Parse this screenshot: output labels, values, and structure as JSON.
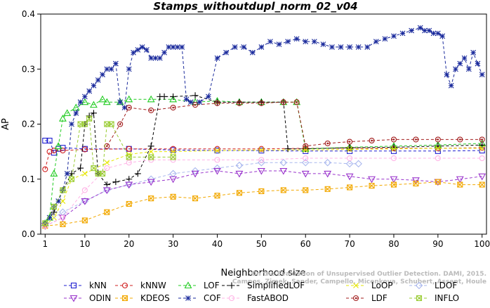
{
  "chart_data": {
    "type": "line",
    "title": "Stamps_withoutdupl_norm_02_v04",
    "xlabel": "Neighborhood size",
    "ylabel": "AP",
    "xlim": [
      0,
      101
    ],
    "ylim": [
      0,
      0.4
    ],
    "xticks": [
      1,
      10,
      20,
      30,
      40,
      50,
      60,
      70,
      80,
      90,
      100
    ],
    "yticks": [
      0.0,
      0.1,
      0.2,
      0.3,
      0.4
    ],
    "grid": false,
    "legend_position": "bottom",
    "watermark": "Campos, Zimek, Sander, Campello, Micenkova, Schubert, Assent, Houle: On the Evaluation of Unsupervised Outlier Detection. DAMI, 2015.",
    "series": [
      {
        "name": "kNN",
        "color": "#1f1fd0",
        "marker": "square",
        "x": [
          1,
          2,
          3,
          4,
          5,
          10,
          20,
          30,
          40,
          50,
          60,
          70,
          80,
          90,
          100
        ],
        "y": [
          0.17,
          0.17,
          0.148,
          0.155,
          0.157,
          0.155,
          0.155,
          0.153,
          0.152,
          0.152,
          0.151,
          0.151,
          0.151,
          0.151,
          0.152
        ]
      },
      {
        "name": "kNNW",
        "color": "#d01f1f",
        "marker": "circle",
        "x": [
          1,
          2,
          3,
          5,
          10,
          20,
          30,
          40,
          50,
          60,
          70,
          80,
          90,
          100
        ],
        "y": [
          0.118,
          0.15,
          0.152,
          0.152,
          0.154,
          0.155,
          0.155,
          0.155,
          0.155,
          0.156,
          0.156,
          0.156,
          0.156,
          0.157
        ]
      },
      {
        "name": "LOF",
        "color": "#22cc22",
        "marker": "triangle-up",
        "x": [
          1,
          2,
          3,
          4,
          5,
          6,
          8,
          10,
          12,
          14,
          15,
          18,
          20,
          25,
          30,
          35,
          40,
          45,
          50,
          55,
          58,
          60,
          70,
          80,
          90,
          100
        ],
        "y": [
          0.02,
          0.03,
          0.11,
          0.16,
          0.21,
          0.22,
          0.23,
          0.24,
          0.235,
          0.245,
          0.24,
          0.24,
          0.245,
          0.245,
          0.245,
          0.24,
          0.242,
          0.24,
          0.24,
          0.24,
          0.24,
          0.155,
          0.158,
          0.16,
          0.162,
          0.165
        ]
      },
      {
        "name": "SimplifiedLOF",
        "color": "#000000",
        "marker": "plus",
        "x": [
          1,
          3,
          5,
          7,
          9,
          10,
          11,
          12,
          13,
          15,
          17,
          20,
          22,
          25,
          27,
          28,
          30,
          35,
          40,
          45,
          50,
          55,
          56,
          60,
          70,
          80,
          90,
          100
        ],
        "y": [
          0.02,
          0.04,
          0.08,
          0.11,
          0.12,
          0.2,
          0.215,
          0.22,
          0.11,
          0.09,
          0.095,
          0.1,
          0.11,
          0.16,
          0.25,
          0.25,
          0.25,
          0.252,
          0.24,
          0.24,
          0.24,
          0.24,
          0.155,
          0.155,
          0.157,
          0.158,
          0.16,
          0.162
        ]
      },
      {
        "name": "LoOP",
        "color": "#e6e600",
        "marker": "x",
        "x": [
          1,
          3,
          5,
          7,
          10,
          15,
          20,
          25,
          30,
          40,
          50,
          60,
          70,
          80,
          90,
          100
        ],
        "y": [
          0.015,
          0.03,
          0.06,
          0.1,
          0.11,
          0.13,
          0.145,
          0.15,
          0.15,
          0.152,
          0.153,
          0.153,
          0.154,
          0.155,
          0.156,
          0.156
        ]
      },
      {
        "name": "LDOF",
        "color": "#a9b7ee",
        "marker": "diamond",
        "x": [
          1,
          5,
          10,
          15,
          20,
          25,
          30,
          35,
          40,
          45,
          50,
          55,
          60,
          65,
          70,
          72
        ],
        "y": [
          0.02,
          0.04,
          0.06,
          0.08,
          0.09,
          0.1,
          0.11,
          0.115,
          0.12,
          0.125,
          0.13,
          0.13,
          0.13,
          0.13,
          0.128,
          0.128
        ]
      },
      {
        "name": "ODIN",
        "color": "#9933cc",
        "marker": "triangle-down",
        "x": [
          1,
          5,
          10,
          15,
          20,
          25,
          30,
          35,
          40,
          45,
          50,
          55,
          60,
          65,
          70,
          75,
          80,
          85,
          90,
          95,
          100
        ],
        "y": [
          0.015,
          0.03,
          0.06,
          0.08,
          0.09,
          0.095,
          0.1,
          0.11,
          0.115,
          0.11,
          0.115,
          0.115,
          0.11,
          0.11,
          0.105,
          0.1,
          0.1,
          0.098,
          0.095,
          0.1,
          0.105
        ]
      },
      {
        "name": "KDEOS",
        "color": "#f2a800",
        "marker": "square-x",
        "x": [
          1,
          5,
          10,
          15,
          20,
          25,
          30,
          35,
          40,
          45,
          50,
          55,
          60,
          65,
          70,
          75,
          80,
          85,
          90,
          95,
          100
        ],
        "y": [
          0.015,
          0.018,
          0.025,
          0.04,
          0.055,
          0.065,
          0.068,
          0.065,
          0.07,
          0.075,
          0.078,
          0.08,
          0.08,
          0.082,
          0.085,
          0.088,
          0.09,
          0.092,
          0.095,
          0.09,
          0.09
        ]
      },
      {
        "name": "LDF",
        "color": "#a31f1f",
        "marker": "circle-dot",
        "x": [
          15,
          18,
          20,
          25,
          30,
          35,
          40,
          45,
          50,
          55,
          58,
          60,
          65,
          70,
          75,
          80,
          85,
          90,
          95,
          100
        ],
        "y": [
          0.16,
          0.2,
          0.23,
          0.225,
          0.23,
          0.235,
          0.238,
          0.238,
          0.238,
          0.24,
          0.24,
          0.16,
          0.165,
          0.168,
          0.17,
          0.172,
          0.172,
          0.172,
          0.172,
          0.172
        ]
      },
      {
        "name": "COF",
        "color": "#1a2a9c",
        "marker": "asterisk",
        "x": [
          1,
          2,
          3,
          4,
          5,
          6,
          7,
          8,
          9,
          10,
          11,
          12,
          13,
          14,
          15,
          16,
          17,
          18,
          19,
          20,
          21,
          22,
          23,
          24,
          25,
          26,
          27,
          28,
          29,
          30,
          31,
          32,
          33,
          34,
          36,
          38,
          40,
          42,
          44,
          46,
          48,
          50,
          52,
          54,
          56,
          58,
          60,
          62,
          64,
          66,
          68,
          70,
          72,
          74,
          76,
          78,
          80,
          82,
          84,
          86,
          87,
          88,
          89,
          90,
          91,
          92,
          93,
          94,
          95,
          96,
          97,
          98,
          99,
          100
        ],
        "y": [
          0.02,
          0.03,
          0.05,
          0.06,
          0.08,
          0.11,
          0.2,
          0.22,
          0.24,
          0.25,
          0.26,
          0.27,
          0.28,
          0.29,
          0.3,
          0.3,
          0.31,
          0.24,
          0.23,
          0.3,
          0.33,
          0.335,
          0.34,
          0.335,
          0.32,
          0.32,
          0.32,
          0.33,
          0.34,
          0.34,
          0.34,
          0.34,
          0.245,
          0.24,
          0.24,
          0.25,
          0.32,
          0.33,
          0.34,
          0.34,
          0.33,
          0.34,
          0.35,
          0.345,
          0.35,
          0.355,
          0.35,
          0.35,
          0.345,
          0.34,
          0.34,
          0.34,
          0.34,
          0.34,
          0.35,
          0.355,
          0.36,
          0.365,
          0.37,
          0.375,
          0.37,
          0.37,
          0.365,
          0.365,
          0.36,
          0.29,
          0.27,
          0.3,
          0.31,
          0.32,
          0.3,
          0.33,
          0.31,
          0.29
        ]
      },
      {
        "name": "FastABOD",
        "color": "#ffb3e6",
        "marker": "circle-open",
        "x": [
          1,
          5,
          10,
          15,
          20,
          25,
          30,
          40,
          50,
          60,
          70,
          80,
          90,
          100
        ],
        "y": [
          0.015,
          0.03,
          0.08,
          0.12,
          0.13,
          0.135,
          0.135,
          0.135,
          0.135,
          0.138,
          0.138,
          0.138,
          0.138,
          0.138
        ]
      },
      {
        "name": "INFLO",
        "color": "#99cc33",
        "marker": "square-x",
        "x": [
          1,
          3,
          5,
          7,
          9,
          10,
          11,
          12,
          13,
          14,
          15,
          16,
          20,
          25,
          30
        ],
        "y": [
          0.02,
          0.05,
          0.08,
          0.1,
          0.2,
          0.2,
          0.21,
          0.12,
          0.11,
          0.11,
          0.2,
          0.2,
          0.14,
          0.14,
          0.14
        ]
      }
    ]
  }
}
